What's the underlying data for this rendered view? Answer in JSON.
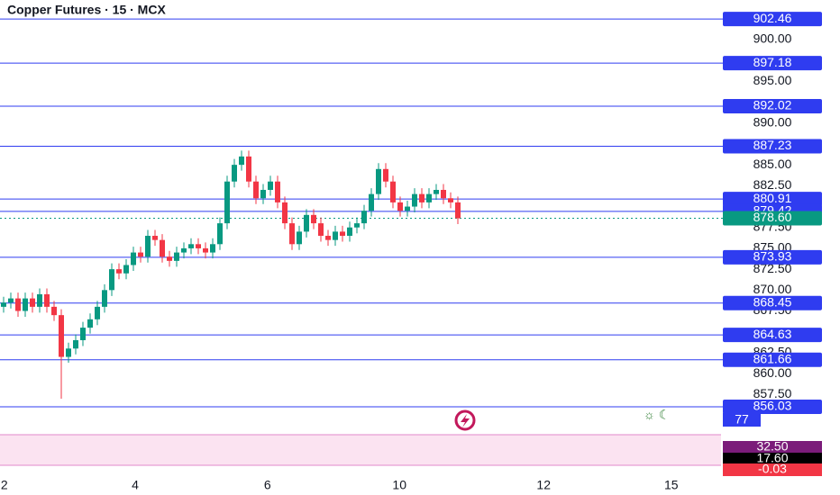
{
  "chart_data": {
    "type": "candlestick",
    "title": "Copper Futures · 15 · MCX",
    "up_color": "#089981",
    "down_color": "#f23645",
    "level_color": "#2f3cf0",
    "last_color": "#089981",
    "xlim": [
      0,
      100
    ],
    "xticks": [
      {
        "value": 0.6,
        "label": "2"
      },
      {
        "value": 18.75,
        "label": "4"
      },
      {
        "value": 37.1,
        "label": "6"
      },
      {
        "value": 55.4,
        "label": "10"
      },
      {
        "value": 75.4,
        "label": "12"
      },
      {
        "value": 93.1,
        "label": "15"
      }
    ],
    "ylim": [
      855.7,
      904.74
    ],
    "yticks": [
      {
        "value": 900,
        "label": "900.00"
      },
      {
        "value": 895,
        "label": "895.00"
      },
      {
        "value": 890,
        "label": "890.00"
      },
      {
        "value": 885,
        "label": "885.00"
      },
      {
        "value": 882.5,
        "label": "882.50"
      },
      {
        "value": 877.5,
        "label": "877.50"
      },
      {
        "value": 875,
        "label": "875.00"
      },
      {
        "value": 872.5,
        "label": "872.50"
      },
      {
        "value": 870,
        "label": "870.00"
      },
      {
        "value": 867.5,
        "label": "867.50"
      },
      {
        "value": 862.5,
        "label": "862.50"
      },
      {
        "value": 860,
        "label": "860.00"
      },
      {
        "value": 857.5,
        "label": "857.50"
      }
    ],
    "levels": [
      902.46,
      897.18,
      892.02,
      887.23,
      880.91,
      879.42,
      873.93,
      868.45,
      864.63,
      861.66,
      856.03
    ],
    "last_price": {
      "value": 878.6,
      "label": "878.60"
    },
    "open": [
      868,
      868.5,
      869,
      867.5,
      869,
      868,
      869.5,
      868,
      867,
      862,
      863,
      864,
      865.5,
      866.5,
      868,
      870,
      872.5,
      872,
      873,
      874.5,
      874,
      876.5,
      876,
      874,
      873.5,
      874.5,
      875,
      875.5,
      875,
      874.5,
      875.5,
      878,
      883,
      885,
      886,
      883,
      881,
      882,
      883,
      880.5,
      878,
      875.5,
      877,
      879,
      878,
      876.5,
      876,
      877,
      876.5,
      877.5,
      878,
      879.5,
      881.5,
      884.5,
      883,
      880.5,
      879.5,
      880,
      881.5,
      880.5,
      881.5,
      882,
      881,
      880.5
    ],
    "high": [
      869.2,
      869.7,
      869.7,
      869.7,
      869.7,
      870.2,
      870.2,
      868.7,
      867.7,
      863.7,
      864.7,
      866.2,
      867.2,
      868.7,
      870.7,
      873.2,
      873.2,
      873.7,
      875.2,
      875.2,
      877.2,
      877.2,
      876.7,
      874.7,
      875.2,
      875.7,
      876.2,
      876.2,
      875.7,
      876.2,
      878.7,
      883.7,
      885.7,
      886.7,
      886.7,
      883.7,
      882.7,
      883.7,
      883.7,
      881.2,
      878.7,
      877.7,
      879.7,
      879.7,
      878.7,
      877.2,
      877.7,
      877.7,
      878.2,
      878.7,
      880.2,
      882.2,
      885.2,
      885.2,
      883.7,
      881.2,
      880.7,
      882.2,
      882.2,
      882.2,
      882.7,
      882.7,
      881.7,
      881.2
    ],
    "low": [
      867.3,
      867.8,
      866.8,
      866.8,
      867.3,
      867.3,
      867.3,
      866.3,
      857,
      861.3,
      862.3,
      863.3,
      864.8,
      865.8,
      867.3,
      869.3,
      871.3,
      871.3,
      872.3,
      873.3,
      873.3,
      875.3,
      873.3,
      872.8,
      872.8,
      873.8,
      874.3,
      874.3,
      873.8,
      873.8,
      874.8,
      877.3,
      882.3,
      884.3,
      882.3,
      880.3,
      880.3,
      881.3,
      879.8,
      877.3,
      874.8,
      874.8,
      876.3,
      877.3,
      875.8,
      875.3,
      875.3,
      875.8,
      875.8,
      876.8,
      877.3,
      878.8,
      880.8,
      882.3,
      879.8,
      878.8,
      878.8,
      879.3,
      879.8,
      879.8,
      880.8,
      880.3,
      879.8,
      877.9
    ],
    "close": [
      868.5,
      869,
      867.5,
      869,
      868,
      869.5,
      868,
      867,
      862,
      863,
      864,
      865.5,
      866.5,
      868,
      870,
      872.5,
      872,
      873,
      874.5,
      874,
      876.5,
      876,
      874,
      873.5,
      874.5,
      875,
      875.5,
      875,
      874.5,
      875.5,
      878,
      883,
      885,
      886,
      883,
      881,
      882,
      883,
      880.5,
      878,
      875.5,
      877,
      879,
      878,
      876.5,
      876,
      877,
      876.5,
      877.5,
      878,
      879.5,
      881.5,
      884.5,
      883,
      880.5,
      879.5,
      880,
      881.5,
      880.5,
      881.5,
      882,
      881,
      880.5,
      878.6
    ],
    "volume_label": "77",
    "indicator_labels": [
      "32.50",
      "17.60",
      "-0.03"
    ]
  }
}
